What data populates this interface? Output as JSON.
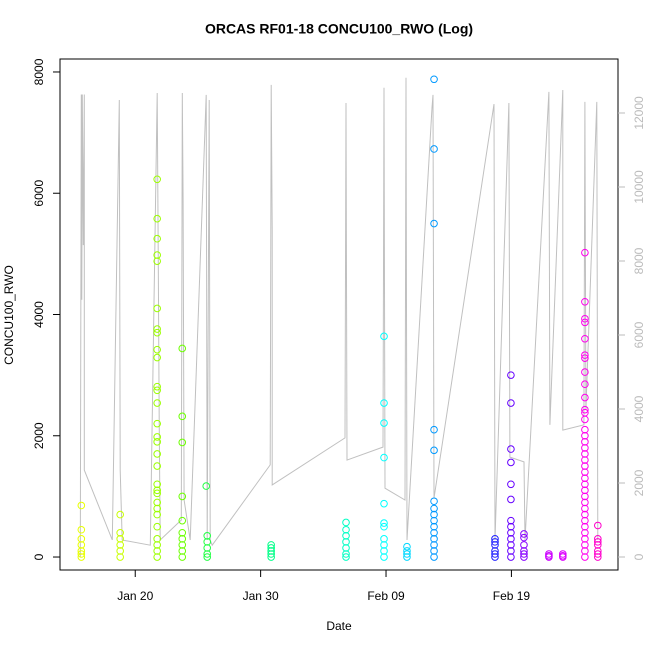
{
  "chart_data": {
    "type": "scatter",
    "title": "ORCAS RF01-18 CONCU100_RWO (Log)",
    "x_label": "Date",
    "y_label": "CONCU100_RWO",
    "xlim": [
      14.0,
      58.5
    ],
    "xticks": [
      {
        "value": 20,
        "label": "Jan 20"
      },
      {
        "value": 30,
        "label": "Jan 30"
      },
      {
        "value": 40,
        "label": "Feb 09"
      },
      {
        "value": 50,
        "label": "Feb 19"
      }
    ],
    "ylim": [
      -214,
      8214
    ],
    "yticks": [
      0,
      2000,
      4000,
      6000,
      8000
    ],
    "y2lim": [
      -351,
      13459
    ],
    "y2ticks": [
      0,
      2000,
      4000,
      6000,
      8000,
      10000,
      12000
    ],
    "y2_color": "#bbbbbb",
    "series": [
      {
        "axis": "y2",
        "style": "line",
        "color": "#c0c0c0",
        "x": [
          15.62,
          15.7,
          15.74,
          15.78,
          15.86,
          15.94,
          15.94,
          18.17,
          18.73,
          18.8,
          18.96,
          21.2,
          21.75,
          21.83,
          21.91,
          21.99,
          23.67,
          23.75,
          23.82,
          23.9,
          24.38,
          25.66,
          25.74,
          25.9,
          25.98,
          26.14,
          30.76,
          30.84,
          30.92,
          30.92,
          36.73,
          36.81,
          36.89,
          39.76,
          39.84,
          39.92,
          41.51,
          41.59,
          41.67,
          43.67,
          43.75,
          43.83,
          48.61,
          48.69,
          49.8,
          49.88,
          51.0,
          51.08,
          52.99,
          53.07,
          54.1,
          54.1,
          55.78,
          55.86,
          55.94,
          56.81,
          56.89
        ],
        "values": [
          0,
          12500,
          6950,
          12500,
          8430,
          12500,
          2350,
          460,
          12350,
          2350,
          460,
          320,
          12540,
          8300,
          3700,
          460,
          1000,
          12540,
          9650,
          1540,
          460,
          12490,
          460,
          12350,
          460,
          320,
          2490,
          12760,
          8840,
          1950,
          3220,
          12270,
          2620,
          2970,
          12680,
          1860,
          1540,
          12950,
          460,
          12140,
          12490,
          1590,
          12240,
          460,
          12270,
          2700,
          2570,
          460,
          12570,
          3570,
          12620,
          3430,
          3570,
          12300,
          3970,
          12300,
          460
        ]
      },
      {
        "color": "#e8ff00",
        "x": [
          15.7,
          15.7,
          15.7,
          15.7,
          15.7,
          15.7,
          15.7
        ],
        "values": [
          850,
          450,
          300,
          200,
          100,
          50,
          0
        ]
      },
      {
        "color": "#c8ff00",
        "x": [
          18.8,
          18.8,
          18.8,
          18.8,
          18.8,
          18.8
        ],
        "values": [
          700,
          400,
          300,
          200,
          100,
          0
        ]
      },
      {
        "color": "#9cff00",
        "x": [
          21.75,
          21.75,
          21.75,
          21.75,
          21.75,
          21.75,
          21.75,
          21.75,
          21.75,
          21.75,
          21.75,
          21.75,
          21.75,
          21.75,
          21.75,
          21.75,
          21.75,
          21.75,
          21.75,
          21.75,
          21.75,
          21.75,
          21.75,
          21.75,
          21.75,
          21.75,
          21.75,
          21.75,
          21.75
        ],
        "values": [
          6230,
          5580,
          5250,
          4980,
          4880,
          4100,
          3760,
          3700,
          3420,
          3290,
          2810,
          2750,
          2540,
          2200,
          1980,
          1900,
          1700,
          1500,
          1200,
          1100,
          1050,
          900,
          800,
          700,
          500,
          300,
          200,
          100,
          0
        ]
      },
      {
        "color": "#6cff00",
        "x": [
          23.75,
          23.75,
          23.75,
          23.75,
          23.75,
          23.75,
          23.75,
          23.75,
          23.75,
          23.75
        ],
        "values": [
          3440,
          2320,
          1890,
          1000,
          600,
          400,
          300,
          200,
          100,
          0
        ]
      },
      {
        "color": "#22ff44",
        "x": [
          25.66,
          25.74,
          25.74,
          25.74,
          25.74,
          25.74
        ],
        "values": [
          1170,
          350,
          250,
          150,
          50,
          0
        ]
      },
      {
        "color": "#00ff88",
        "x": [
          30.84,
          30.84,
          30.84,
          30.84,
          30.84
        ],
        "values": [
          200,
          150,
          100,
          50,
          0
        ]
      },
      {
        "color": "#00ffc4",
        "x": [
          36.81,
          36.81,
          36.81,
          36.81,
          36.81,
          36.81,
          36.81
        ],
        "values": [
          570,
          450,
          350,
          250,
          150,
          50,
          0
        ]
      },
      {
        "color": "#00ffff",
        "x": [
          39.84,
          39.84,
          39.84,
          39.84,
          39.84,
          39.84,
          39.84,
          39.84,
          39.84,
          39.84,
          39.84
        ],
        "values": [
          3640,
          2540,
          2210,
          1640,
          880,
          560,
          500,
          300,
          200,
          100,
          0
        ]
      },
      {
        "color": "#00d8ff",
        "x": [
          41.67,
          41.67,
          41.67,
          41.67
        ],
        "values": [
          170,
          100,
          50,
          0
        ]
      },
      {
        "color": "#0099ff",
        "x": [
          43.83,
          43.83,
          43.83,
          43.83,
          43.83,
          43.83,
          43.83,
          43.83,
          43.83,
          43.83,
          43.83,
          43.83,
          43.83,
          43.83,
          43.83
        ],
        "values": [
          7880,
          6730,
          5500,
          2100,
          1760,
          920,
          800,
          700,
          600,
          500,
          400,
          300,
          200,
          100,
          0
        ]
      },
      {
        "color": "#2222ff",
        "x": [
          48.69,
          48.69,
          48.69,
          48.69,
          48.69,
          48.69
        ],
        "values": [
          300,
          250,
          200,
          100,
          50,
          0
        ]
      },
      {
        "color": "#6600ff",
        "x": [
          49.96,
          49.96,
          49.96,
          49.96,
          49.96,
          49.96,
          49.96,
          49.96,
          49.96,
          49.96,
          49.96,
          49.96,
          49.96
        ],
        "values": [
          3000,
          2540,
          1780,
          1560,
          1200,
          950,
          600,
          500,
          400,
          300,
          200,
          100,
          0
        ]
      },
      {
        "color": "#8800ff",
        "x": [
          51.0,
          51.0,
          51.0,
          51.0,
          51.0,
          51.0
        ],
        "values": [
          380,
          320,
          200,
          100,
          50,
          0
        ]
      },
      {
        "color": "#cc00ff",
        "x": [
          52.99,
          52.99,
          52.99
        ],
        "values": [
          50,
          20,
          0
        ]
      },
      {
        "color": "#dd00ff",
        "x": [
          54.1,
          54.1,
          54.1
        ],
        "values": [
          50,
          20,
          0
        ]
      },
      {
        "color": "#ff00ee",
        "x": [
          55.86,
          55.86,
          55.86,
          55.86,
          55.86,
          55.86,
          55.86,
          55.86,
          55.86,
          55.86,
          55.86,
          55.86,
          55.86,
          55.86,
          55.86,
          55.86,
          55.86,
          55.86,
          55.86,
          55.86,
          55.86,
          55.86,
          55.86,
          55.86,
          55.86,
          55.86,
          55.86,
          55.86,
          55.86,
          55.86,
          55.86,
          55.86,
          55.86,
          55.86,
          55.86
        ],
        "values": [
          5020,
          4210,
          3930,
          3870,
          3600,
          3330,
          3280,
          3050,
          2850,
          2630,
          2430,
          2380,
          2270,
          2100,
          2000,
          1900,
          1800,
          1700,
          1600,
          1500,
          1400,
          1300,
          1200,
          1100,
          1000,
          900,
          800,
          700,
          600,
          500,
          400,
          300,
          200,
          100,
          0
        ]
      },
      {
        "color": "#ff00cc",
        "x": [
          56.89,
          56.89,
          56.89,
          56.89,
          56.89,
          56.89,
          56.89
        ],
        "values": [
          520,
          300,
          250,
          200,
          100,
          50,
          0
        ]
      }
    ]
  }
}
